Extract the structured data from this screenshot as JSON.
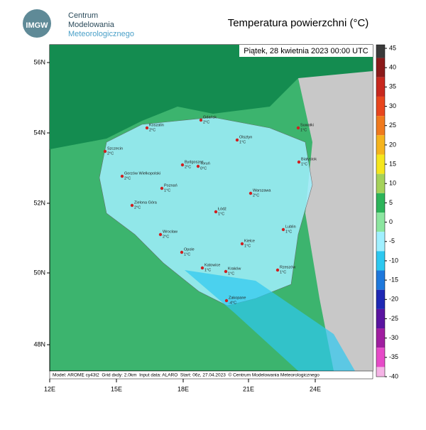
{
  "header": {
    "logo": "IMGW",
    "org_lines": [
      "Centrum",
      "Modelowania",
      "Meteorologicznego"
    ],
    "title": "Temperatura powierzchni (°C)"
  },
  "map": {
    "date": "Piątek, 28 kwietnia 2023 00:00 UTC",
    "lat_labels": [
      "56N",
      "54N",
      "52N",
      "50N",
      "48N"
    ],
    "lon_labels": [
      "12E",
      "15E",
      "18E",
      "21E",
      "24E"
    ],
    "footer": "Model: AROME cy43t2  Grid dxdy: 2.0km  Input data: ALARO  Start: 06z, 27.04.2023  © Centrum Modelowania Meteorologicznego",
    "cities": [
      {
        "name": "Koszalin",
        "temp": "2°C"
      },
      {
        "name": "Gdańsk",
        "temp": "2°C"
      },
      {
        "name": "Olsztyn",
        "temp": "1°C"
      },
      {
        "name": "Suwałki",
        "temp": "1°C"
      },
      {
        "name": "Szczecin",
        "temp": "2°C"
      },
      {
        "name": "Bydgoszcz",
        "temp": "2°C"
      },
      {
        "name": "Toruń",
        "temp": "0°C"
      },
      {
        "name": "Białystok",
        "temp": "1°C"
      },
      {
        "name": "Gorzów Wielkopolski",
        "temp": "2°C"
      },
      {
        "name": "Poznań",
        "temp": "1°C"
      },
      {
        "name": "Warszawa",
        "temp": "2°C"
      },
      {
        "name": "Zielona Góra",
        "temp": "2°C"
      },
      {
        "name": "Łódź",
        "temp": "1°C"
      },
      {
        "name": "Wrocław",
        "temp": "2°C"
      },
      {
        "name": "Lublin",
        "temp": "1°C"
      },
      {
        "name": "Opole",
        "temp": "1°C"
      },
      {
        "name": "Kielce",
        "temp": "1°C"
      },
      {
        "name": "Katowice",
        "temp": "1°C"
      },
      {
        "name": "Kraków",
        "temp": "1°C"
      },
      {
        "name": "Rzeszów",
        "temp": "1°C"
      },
      {
        "name": "Zakopane",
        "temp": "-4°C"
      }
    ]
  },
  "colorbar": {
    "ticks": [
      45,
      40,
      35,
      30,
      25,
      20,
      15,
      10,
      5,
      0,
      -5,
      -10,
      -15,
      -20,
      -25,
      -30,
      -35,
      -40
    ],
    "colors": [
      "#3a3a3a",
      "#8b1a1a",
      "#c8281e",
      "#e8461e",
      "#f07a1e",
      "#f5b41e",
      "#f5e61e",
      "#a5d25a",
      "#2db45a",
      "#8ce6a0",
      "#a0f0ff",
      "#2dc8f0",
      "#1e78dc",
      "#1e28b4",
      "#5a14a0",
      "#a01ea0",
      "#e64bc8",
      "#f5b4e6"
    ]
  }
}
